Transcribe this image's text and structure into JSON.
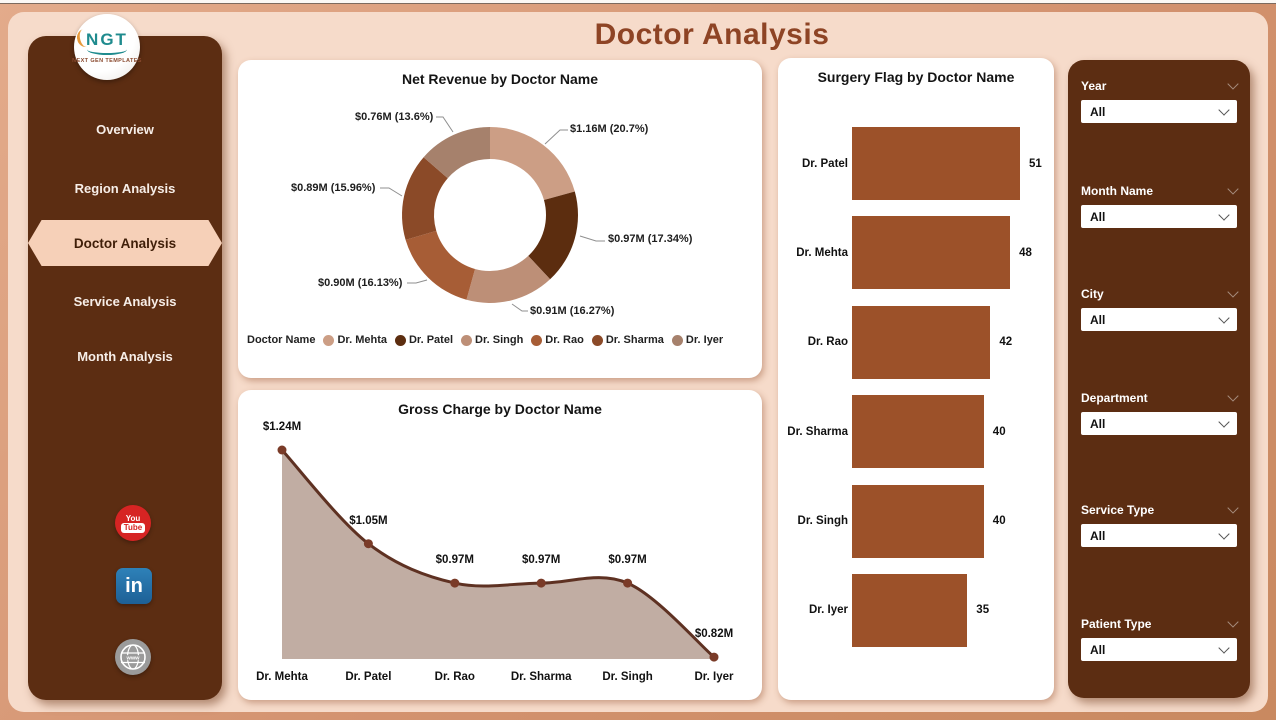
{
  "app": {
    "title": "Doctor Analysis"
  },
  "logo": {
    "text": "NGT",
    "tagline": "NEXT GEN TEMPLATES"
  },
  "sidebar": {
    "items": [
      {
        "label": "Overview",
        "active": false
      },
      {
        "label": "Region Analysis",
        "active": false
      },
      {
        "label": "Doctor Analysis",
        "active": true
      },
      {
        "label": "Service Analysis",
        "active": false
      },
      {
        "label": "Month Analysis",
        "active": false
      }
    ],
    "social": [
      {
        "name": "youtube",
        "line1": "You",
        "line2": "Tube"
      },
      {
        "name": "linkedin",
        "label": "in"
      },
      {
        "name": "website",
        "label": "www"
      }
    ]
  },
  "filters": [
    {
      "label": "Year",
      "value": "All"
    },
    {
      "label": "Month Name",
      "value": "All"
    },
    {
      "label": "City",
      "value": "All"
    },
    {
      "label": "Department",
      "value": "All"
    },
    {
      "label": "Service Type",
      "value": "All"
    },
    {
      "label": "Patient Type",
      "value": "All"
    }
  ],
  "colors": {
    "frame": "#D5997A",
    "canvas": "#F6DBCA",
    "panel_brown": "#5C2D12",
    "title_brown": "#8E4425",
    "bar": "#9C5129"
  },
  "chart_data": [
    {
      "type": "pie",
      "donut": true,
      "title": "Net Revenue by Doctor Name",
      "legend_title": "Doctor Name",
      "legend_position": "bottom",
      "slices": [
        {
          "name": "Dr. Mehta",
          "value_label": "$1.16M",
          "pct": 20.7,
          "pct_label": "20.7%",
          "color": "#CC9E85"
        },
        {
          "name": "Dr. Patel",
          "value_label": "$0.97M",
          "pct": 17.34,
          "pct_label": "17.34%",
          "color": "#5C2D0F"
        },
        {
          "name": "Dr. Singh",
          "value_label": "$0.91M",
          "pct": 16.27,
          "pct_label": "16.27%",
          "color": "#BD8F77"
        },
        {
          "name": "Dr. Rao",
          "value_label": "$0.90M",
          "pct": 16.13,
          "pct_label": "16.13%",
          "color": "#A75D36"
        },
        {
          "name": "Dr. Sharma",
          "value_label": "$0.89M",
          "pct": 15.96,
          "pct_label": "15.96%",
          "color": "#8B4A28"
        },
        {
          "name": "Dr. Iyer",
          "value_label": "$0.76M",
          "pct": 13.6,
          "pct_label": "13.6%",
          "color": "#A6816C"
        }
      ]
    },
    {
      "type": "area",
      "title": "Gross Charge by Doctor Name",
      "categories": [
        "Dr. Mehta",
        "Dr. Patel",
        "Dr. Rao",
        "Dr. Sharma",
        "Dr. Singh",
        "Dr. Iyer"
      ],
      "values": [
        1.24,
        1.05,
        0.97,
        0.97,
        0.97,
        0.82
      ],
      "value_labels": [
        "$1.24M",
        "$1.05M",
        "$0.97M",
        "$0.97M",
        "$0.97M",
        "$0.82M"
      ],
      "unit": "M USD",
      "colors": {
        "fill": "#C1ADA3",
        "line": "#5E3122",
        "marker": "#7A3B28"
      }
    },
    {
      "type": "bar",
      "orientation": "horizontal",
      "title": "Surgery Flag by Doctor Name",
      "categories": [
        "Dr. Patel",
        "Dr. Mehta",
        "Dr. Rao",
        "Dr. Sharma",
        "Dr. Singh",
        "Dr. Iyer"
      ],
      "values": [
        51,
        48,
        42,
        40,
        40,
        35
      ],
      "bar_color": "#9C5129"
    }
  ]
}
